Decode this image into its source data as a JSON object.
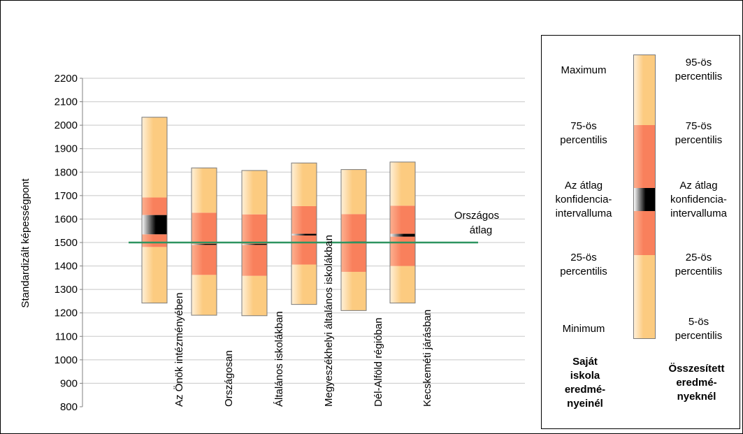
{
  "colors": {
    "outer": "#fccb80",
    "outer_edge": "#fff0d8",
    "inner": "#f9805c",
    "inner_edge": "#fcb090",
    "ci_dark": "#000000",
    "reference_line": "#2e9460",
    "grid": "#c8c8c8",
    "axis": "#808080"
  },
  "chart_data": {
    "type": "box",
    "ylabel": "Standardizált képességpont",
    "ylim": [
      800,
      2200
    ],
    "yticks": [
      800,
      900,
      1000,
      1100,
      1200,
      1300,
      1400,
      1500,
      1600,
      1700,
      1800,
      1900,
      2000,
      2100,
      2200
    ],
    "categories": [
      "Az Önök intézményében",
      "Országosan",
      "Általános iskolákban",
      "Megyeszékhelyi általános iskolákban",
      "Dél-Alföld régióban",
      "Kecskeméti járásban"
    ],
    "series": [
      {
        "low": 1242,
        "q1": 1481,
        "ci_low": 1535,
        "ci_high": 1617,
        "q3": 1692,
        "high": 2034
      },
      {
        "low": 1190,
        "q1": 1362,
        "ci_low": 1490,
        "ci_high": 1494,
        "q3": 1627,
        "high": 1818
      },
      {
        "low": 1188,
        "q1": 1358,
        "ci_low": 1490,
        "ci_high": 1494,
        "q3": 1620,
        "high": 1807
      },
      {
        "low": 1236,
        "q1": 1406,
        "ci_low": 1530,
        "ci_high": 1537,
        "q3": 1655,
        "high": 1839
      },
      {
        "low": 1210,
        "q1": 1375,
        "ci_low": 1500,
        "ci_high": 1504,
        "q3": 1621,
        "high": 1811
      },
      {
        "low": 1242,
        "q1": 1400,
        "ci_low": 1525,
        "ci_high": 1537,
        "q3": 1657,
        "high": 1843
      }
    ],
    "reference": {
      "value": 1500,
      "label_line1": "Országos",
      "label_line2": "átlag"
    },
    "grid": true
  },
  "legend": {
    "left": {
      "maximum": "Maximum",
      "p75_line1": "75-ös",
      "p75_line2": "percentilis",
      "ci_line1": "Az átlag",
      "ci_line2": "konfidencia-",
      "ci_line3": "intervalluma",
      "p25_line1": "25-ös",
      "p25_line2": "percentilis",
      "minimum": "Minimum",
      "title_line1": "Saját",
      "title_line2": "iskola",
      "title_line3": "eredmé-",
      "title_line4": "nyeinél"
    },
    "right": {
      "p95_line1": "95-ös",
      "p95_line2": "percentilis",
      "p75_line1": "75-ös",
      "p75_line2": "percentilis",
      "ci_line1": "Az átlag",
      "ci_line2": "konfidencia-",
      "ci_line3": "intervalluma",
      "p25_line1": "25-ös",
      "p25_line2": "percentilis",
      "p5_line1": "5-ös",
      "p5_line2": "percentilis",
      "title_line1": "Összesített",
      "title_line2": "eredmé-",
      "title_line3": "nyeknél"
    }
  }
}
